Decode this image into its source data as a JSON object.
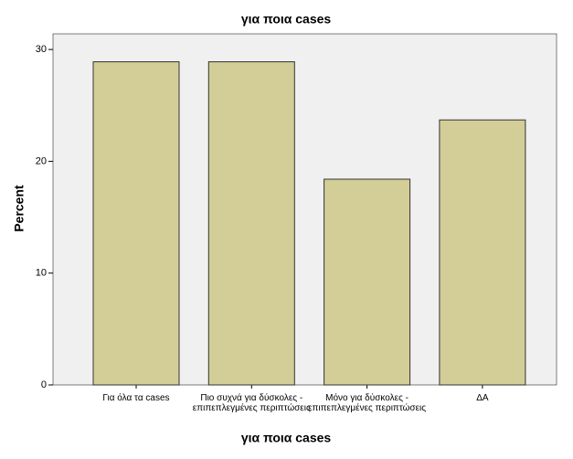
{
  "chart_data": {
    "type": "bar",
    "title": "για ποια cases",
    "x_label": "για ποια cases",
    "y_label": "Percent",
    "categories": [
      "Για όλα τα cases",
      "Πιο συχνά για δύσκολες - επιπεπλεγμένες περιπτώσεις",
      "Μόνο για δύσκολες - επιπεπλεγμένες περιπτώσεις",
      "ΔΑ"
    ],
    "values": [
      28.9,
      28.9,
      18.4,
      23.7
    ],
    "color": "#d3ce97",
    "ylim": [
      0,
      31.4
    ],
    "yticks": [
      0,
      10,
      20,
      30
    ]
  }
}
